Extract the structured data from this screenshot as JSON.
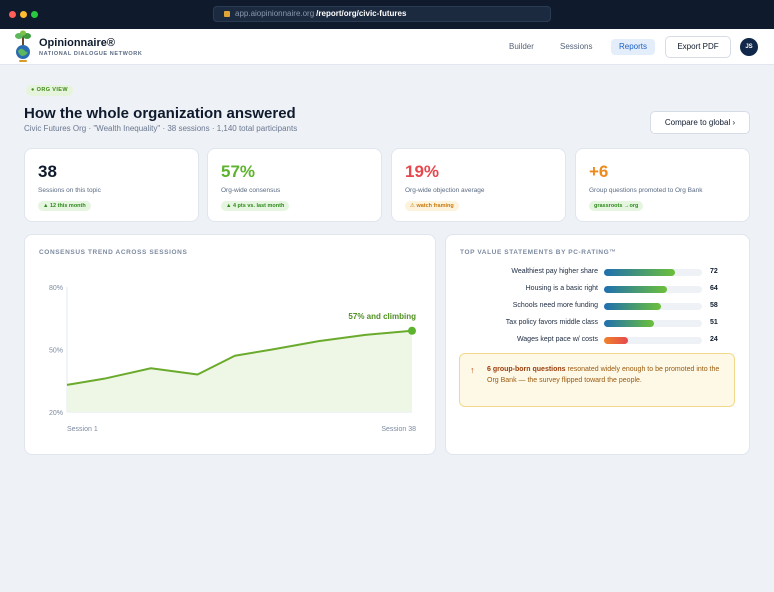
{
  "browser": {
    "domain": "app.aiopinionnaire.org",
    "path": "/report/org/civic-futures"
  },
  "header": {
    "brand": "Opinionnaire®",
    "tagline": "NATIONAL DIALOGUE NETWORK",
    "nav": {
      "builder": "Builder",
      "sessions": "Sessions",
      "reports": "Reports"
    },
    "export_label": "Export PDF",
    "avatar_initials": "JS"
  },
  "page": {
    "pill": "● ORG VIEW",
    "title": "How the whole organization answered",
    "subtitle": "Civic Futures Org · \"Wealth Inequality\" · 38 sessions · 1,140 total participants",
    "compare_label": "Compare to global ›"
  },
  "kpis": [
    {
      "value": "38",
      "label": "Sessions on this topic",
      "badge": "▲ 12 this month",
      "value_color": "#0f1b2d",
      "badge_style": "green"
    },
    {
      "value": "57%",
      "label": "Org-wide consensus",
      "badge": "▲ 4 pts vs. last month",
      "value_color": "#5db32d",
      "badge_style": "green"
    },
    {
      "value": "19%",
      "label": "Org-wide objection average",
      "badge": "⚠ watch framing",
      "value_color": "#e5484d",
      "badge_style": "orange"
    },
    {
      "value": "+6",
      "label": "Group questions promoted to Org Bank",
      "badge": "grassroots →org",
      "value_color": "#ee8a1c",
      "badge_style": "green"
    }
  ],
  "trend": {
    "title": "CONSENSUS TREND ACROSS SESSIONS",
    "annotation": "57% and climbing",
    "x_start_label": "Session 1",
    "x_end_label": "Session 38"
  },
  "chart_data": {
    "type": "area",
    "title": "CONSENSUS TREND ACROSS SESSIONS",
    "y_ticks": [
      "80%",
      "50%",
      "20%"
    ],
    "ylim": [
      20,
      80
    ],
    "x_labels": [
      "Session 1",
      "Session 38"
    ],
    "x": [
      1,
      5,
      10,
      15,
      19,
      23,
      28,
      33,
      38
    ],
    "values": [
      33,
      36,
      41,
      38,
      47,
      50,
      54,
      57,
      59
    ],
    "annotation": "57% and climbing",
    "line_color": "#6aaa2c",
    "fill_color": "#eef7e6",
    "grid": false
  },
  "statements": {
    "title": "TOP VALUE STATEMENTS BY PC-RATING™",
    "items": [
      {
        "label": "Wealthiest pay higher share",
        "value": 72,
        "gradient": [
          "#1f6fb0",
          "#6cc03a"
        ]
      },
      {
        "label": "Housing is a basic right",
        "value": 64,
        "gradient": [
          "#1f6fb0",
          "#6cc03a"
        ]
      },
      {
        "label": "Schools need more funding",
        "value": 58,
        "gradient": [
          "#1f6fb0",
          "#6cc03a"
        ]
      },
      {
        "label": "Tax policy favors middle class",
        "value": 51,
        "gradient": [
          "#1f6fb0",
          "#6cc03a"
        ]
      },
      {
        "label": "Wages kept pace w/ costs",
        "value": 24,
        "gradient": [
          "#f0832a",
          "#e5484d"
        ]
      }
    ]
  },
  "callout": {
    "bold": "6 group-born questions",
    "text": " resonated widely enough to be promoted into the Org Bank — the survey flipped toward the people."
  }
}
